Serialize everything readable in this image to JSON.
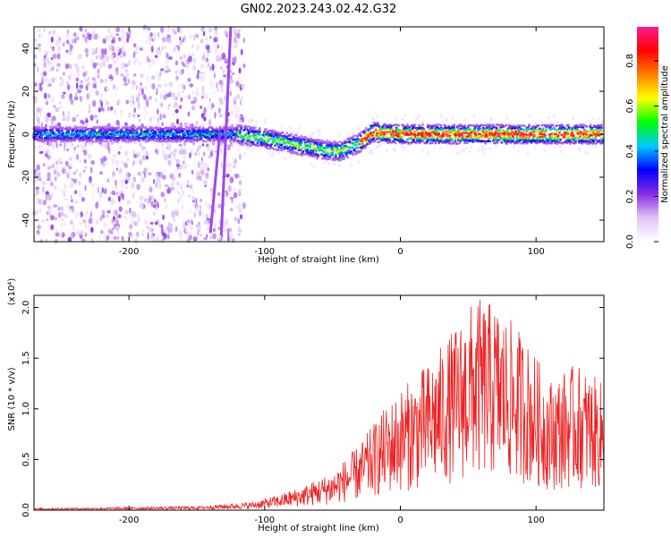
{
  "figure": {
    "title": "GN02.2023.243.02.42.G32"
  },
  "chart_data": [
    {
      "type": "heatmap",
      "xlabel": "Height of straight line (km)",
      "ylabel": "Frequency (Hz)",
      "xlim": [
        -270,
        150
      ],
      "ylim": [
        -50,
        50
      ],
      "xticks": [
        -200,
        -100,
        0,
        100
      ],
      "yticks": [
        -40,
        -20,
        0,
        20,
        40
      ],
      "grid": false,
      "colorbar": {
        "label": "Normalized spectral amplitude",
        "range": [
          0.0,
          0.95
        ],
        "ticks": [
          0.0,
          0.2,
          0.4,
          0.6,
          0.8
        ],
        "tick_labels": [
          "0.0",
          "0.2",
          "0.4",
          "0.6",
          "0.8"
        ],
        "colors": [
          "#ffffff",
          "#e0c4f8",
          "#8a2be2",
          "#0000ff",
          "#00c8ff",
          "#00ff00",
          "#ffff00",
          "#ff8000",
          "#ff0000",
          "#ff1a8c"
        ]
      },
      "ridge_center_hz": [
        {
          "x": -270,
          "y": 0
        },
        {
          "x": -120,
          "y": 0
        },
        {
          "x": -90,
          "y": -3
        },
        {
          "x": -60,
          "y": -7
        },
        {
          "x": -45,
          "y": -8
        },
        {
          "x": -30,
          "y": -4
        },
        {
          "x": -20,
          "y": 1
        },
        {
          "x": 0,
          "y": 0
        },
        {
          "x": 50,
          "y": 0
        },
        {
          "x": 100,
          "y": 0
        },
        {
          "x": 150,
          "y": 0
        }
      ],
      "streaks": [
        {
          "x_start": -132,
          "y_start": -47,
          "x_end": -125,
          "y_end": 50
        },
        {
          "x_start": -140,
          "y_start": -46,
          "x_end": -133,
          "y_end": 1
        }
      ]
    },
    {
      "type": "line",
      "xlabel": "Height of straight line (km)",
      "ylabel": "SNR (10 * v/v)",
      "y_multiplier": "(x10⁴)",
      "xlim": [
        -270,
        150
      ],
      "ylim": [
        0.0,
        2.12
      ],
      "xticks": [
        -200,
        -100,
        0,
        100
      ],
      "yticks": [
        0.0,
        0.5,
        1.0,
        1.5,
        2.0
      ],
      "ytick_labels": [
        "0.0",
        "0.5",
        "1.0",
        "1.5",
        "2.0"
      ],
      "grid": false,
      "series": [
        {
          "color": "#ee2222",
          "envelope": [
            {
              "x": -270,
              "y": 0.02
            },
            {
              "x": -200,
              "y": 0.03
            },
            {
              "x": -150,
              "y": 0.04
            },
            {
              "x": -110,
              "y": 0.08
            },
            {
              "x": -90,
              "y": 0.15
            },
            {
              "x": -70,
              "y": 0.25
            },
            {
              "x": -50,
              "y": 0.38
            },
            {
              "x": -30,
              "y": 0.65
            },
            {
              "x": -15,
              "y": 0.95
            },
            {
              "x": 0,
              "y": 1.2
            },
            {
              "x": 20,
              "y": 1.45
            },
            {
              "x": 40,
              "y": 1.8
            },
            {
              "x": 55,
              "y": 2.1
            },
            {
              "x": 70,
              "y": 2.05
            },
            {
              "x": 90,
              "y": 1.75
            },
            {
              "x": 110,
              "y": 1.3
            },
            {
              "x": 130,
              "y": 1.45
            },
            {
              "x": 150,
              "y": 1.25
            }
          ]
        }
      ]
    }
  ]
}
